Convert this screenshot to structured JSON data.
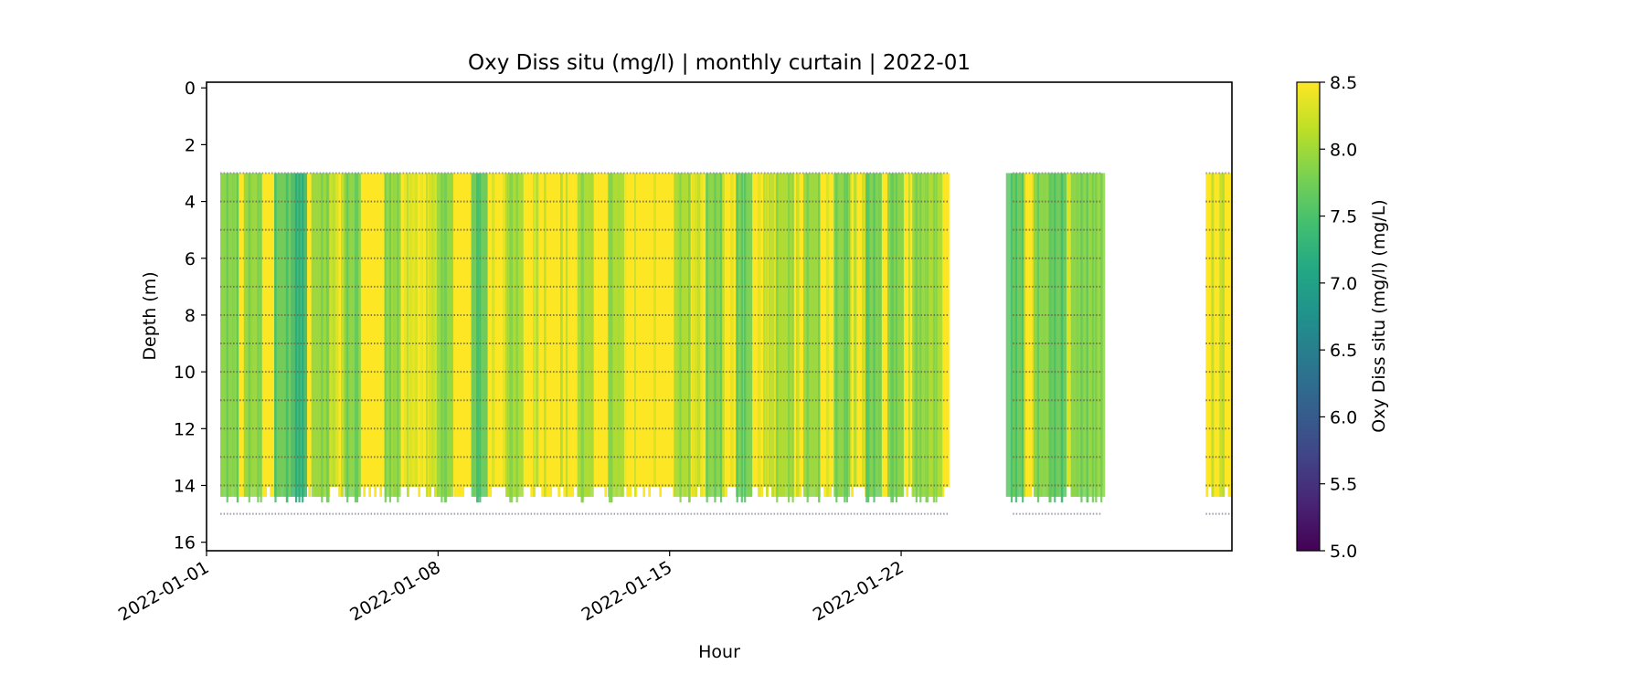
{
  "chart_data": {
    "type": "heatmap",
    "title": "Oxy Diss situ (mg/l) | monthly curtain | 2022-01",
    "xlabel": "Hour",
    "ylabel": "Depth (m)",
    "xlim": [
      "2022-01-01",
      "2022-02-01"
    ],
    "ylim": [
      16.3,
      -0.2
    ],
    "y_inverted": true,
    "x_ticks": [
      "2022-01-01",
      "2022-01-08",
      "2022-01-15",
      "2022-01-22"
    ],
    "y_ticks": [
      0,
      2,
      4,
      6,
      8,
      10,
      12,
      14,
      16
    ],
    "colorbar": {
      "label": "Oxy Diss situ (mg/l) (mg/L)",
      "min": 5.0,
      "max": 8.5,
      "ticks": [
        5.0,
        5.5,
        6.0,
        6.5,
        7.0,
        7.5,
        8.0,
        8.5
      ],
      "colormap": "viridis"
    },
    "sample_depths_m": [
      3,
      4,
      5,
      6,
      7,
      8,
      9,
      10,
      11,
      12,
      13,
      14,
      15
    ],
    "data_periods": [
      {
        "start": "2022-01-01T10:00",
        "end": "2022-01-23T11:00",
        "top_depth_m": 3,
        "bottom_depth_m": 15
      },
      {
        "start": "2022-01-25T09:00",
        "end": "2022-01-28T02:00",
        "top_depth_m": 3,
        "bottom_depth_m": 15
      },
      {
        "start": "2022-01-31T05:00",
        "end": "2022-02-01T00:00",
        "top_depth_m": 3,
        "bottom_depth_m": 15
      }
    ],
    "value_range_observed": [
      7.2,
      8.5
    ],
    "predominant_value": 8.5,
    "lower_value_bands": [
      {
        "center": "2022-01-01T16:00",
        "value": 7.8
      },
      {
        "center": "2022-01-02T09:00",
        "value": 7.9
      },
      {
        "center": "2022-01-03T07:00",
        "value": 7.6
      },
      {
        "center": "2022-01-03T19:00",
        "value": 7.3
      },
      {
        "center": "2022-01-04T10:00",
        "value": 7.9
      },
      {
        "center": "2022-01-05T10:00",
        "value": 7.8
      },
      {
        "center": "2022-01-06T15:00",
        "value": 7.9
      },
      {
        "center": "2022-01-08T05:00",
        "value": 7.9
      },
      {
        "center": "2022-01-09T06:00",
        "value": 7.6
      },
      {
        "center": "2022-01-10T08:00",
        "value": 8.0
      },
      {
        "center": "2022-01-12T11:00",
        "value": 8.0
      },
      {
        "center": "2022-01-13T09:00",
        "value": 8.0
      },
      {
        "center": "2022-01-15T09:00",
        "value": 8.0
      },
      {
        "center": "2022-01-16T08:00",
        "value": 7.8
      },
      {
        "center": "2022-01-17T06:00",
        "value": 7.7
      },
      {
        "center": "2022-01-18T11:00",
        "value": 8.0
      },
      {
        "center": "2022-01-19T07:00",
        "value": 7.9
      },
      {
        "center": "2022-01-20T05:00",
        "value": 7.8
      },
      {
        "center": "2022-01-21T04:00",
        "value": 7.7
      },
      {
        "center": "2022-01-21T20:00",
        "value": 7.8
      },
      {
        "center": "2022-01-22T14:00",
        "value": 7.9
      },
      {
        "center": "2022-01-23T00:00",
        "value": 8.0
      },
      {
        "center": "2022-01-25T10:00",
        "value": 7.6
      },
      {
        "center": "2022-01-26T06:00",
        "value": 7.8
      },
      {
        "center": "2022-01-26T18:00",
        "value": 7.6
      },
      {
        "center": "2022-01-27T09:00",
        "value": 7.8
      },
      {
        "center": "2022-01-27T22:00",
        "value": 7.9
      }
    ],
    "grid": false,
    "legend": "none"
  }
}
